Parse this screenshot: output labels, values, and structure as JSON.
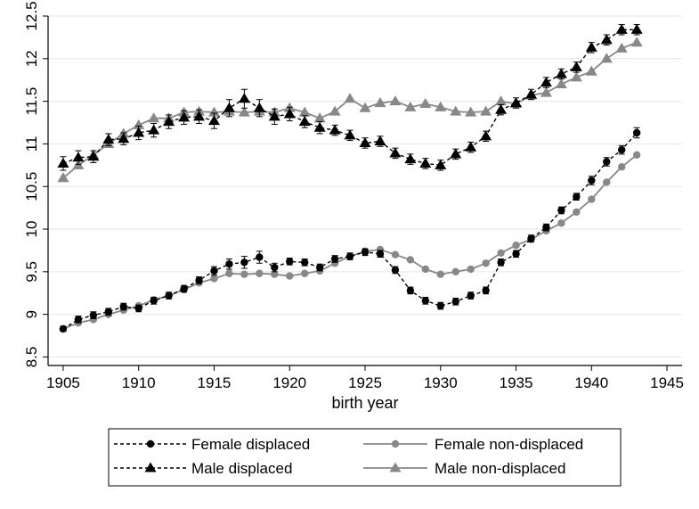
{
  "chart_data": {
    "type": "line",
    "title": "",
    "xlabel": "birth year",
    "ylabel": "",
    "xlim": [
      1904,
      1946
    ],
    "ylim": [
      8.4,
      12.5
    ],
    "xticks": [
      1905,
      1910,
      1915,
      1920,
      1925,
      1930,
      1935,
      1940,
      1945
    ],
    "xtick_labels": [
      "1905",
      "1910",
      "1915",
      "1920",
      "1925",
      "1930",
      "1935",
      "1940",
      "1945"
    ],
    "yticks": [
      8.5,
      9,
      9.5,
      10,
      10.5,
      11,
      11.5,
      12,
      12.5
    ],
    "ytick_labels": [
      "8.5",
      "9",
      "9.5",
      "10",
      "10.5",
      "11",
      "11.5",
      "12",
      "12.5"
    ],
    "grid": "horizontal",
    "legend_position": "bottom",
    "x": [
      1905,
      1906,
      1907,
      1908,
      1909,
      1910,
      1911,
      1912,
      1913,
      1914,
      1915,
      1916,
      1917,
      1918,
      1919,
      1920,
      1921,
      1922,
      1923,
      1924,
      1925,
      1926,
      1927,
      1928,
      1929,
      1930,
      1931,
      1932,
      1933,
      1934,
      1935,
      1936,
      1937,
      1938,
      1939,
      1940,
      1941,
      1942,
      1943
    ],
    "series": [
      {
        "name": "Female displaced",
        "color": "#000000",
        "line": "dashed",
        "marker": "circle",
        "values": [
          8.83,
          8.94,
          8.99,
          9.03,
          9.09,
          9.07,
          9.16,
          9.22,
          9.3,
          9.4,
          9.51,
          9.59,
          9.61,
          9.67,
          9.55,
          9.62,
          9.61,
          9.55,
          9.65,
          9.68,
          9.73,
          9.71,
          9.52,
          9.28,
          9.16,
          9.1,
          9.15,
          9.22,
          9.28,
          9.61,
          9.71,
          9.89,
          10.02,
          10.22,
          10.38,
          10.57,
          10.79,
          10.93,
          11.13
        ],
        "errors": [
          0.03,
          0.04,
          0.04,
          0.04,
          0.04,
          0.04,
          0.04,
          0.04,
          0.04,
          0.04,
          0.05,
          0.06,
          0.07,
          0.07,
          0.05,
          0.04,
          0.04,
          0.04,
          0.04,
          0.04,
          0.04,
          0.04,
          0.04,
          0.04,
          0.04,
          0.04,
          0.04,
          0.04,
          0.04,
          0.04,
          0.04,
          0.04,
          0.04,
          0.04,
          0.04,
          0.05,
          0.05,
          0.05,
          0.06
        ]
      },
      {
        "name": "Female non-displaced",
        "color": "#888888",
        "line": "solid",
        "marker": "circle",
        "values": [
          8.83,
          8.9,
          8.94,
          9.0,
          9.05,
          9.1,
          9.17,
          9.22,
          9.29,
          9.37,
          9.42,
          9.48,
          9.47,
          9.48,
          9.47,
          9.45,
          9.48,
          9.51,
          9.6,
          9.68,
          9.74,
          9.76,
          9.7,
          9.64,
          9.53,
          9.47,
          9.5,
          9.53,
          9.6,
          9.72,
          9.81,
          9.88,
          9.98,
          10.07,
          10.2,
          10.35,
          10.55,
          10.73,
          10.87
        ],
        "errors": []
      },
      {
        "name": "Male displaced",
        "color": "#000000",
        "line": "dashed",
        "marker": "triangle",
        "values": [
          10.77,
          10.84,
          10.85,
          11.05,
          11.06,
          11.13,
          11.16,
          11.26,
          11.31,
          11.32,
          11.27,
          11.42,
          11.53,
          11.42,
          11.32,
          11.35,
          11.26,
          11.19,
          11.16,
          11.1,
          11.01,
          11.03,
          10.89,
          10.82,
          10.77,
          10.75,
          10.88,
          10.96,
          11.09,
          11.4,
          11.48,
          11.58,
          11.72,
          11.82,
          11.9,
          12.13,
          12.22,
          12.34,
          12.34
        ]
      },
      {
        "name": "Male non-displaced",
        "color": "#888888",
        "line": "solid",
        "marker": "triangle",
        "values": [
          10.6,
          10.75,
          10.87,
          11.0,
          11.12,
          11.22,
          11.3,
          11.3,
          11.37,
          11.38,
          11.37,
          11.38,
          11.37,
          11.38,
          11.37,
          11.42,
          11.37,
          11.3,
          11.38,
          11.53,
          11.42,
          11.48,
          11.5,
          11.43,
          11.47,
          11.43,
          11.38,
          11.37,
          11.38,
          11.5,
          11.47,
          11.57,
          11.6,
          11.7,
          11.78,
          11.85,
          12.0,
          12.12,
          12.19
        ]
      }
    ],
    "male_displaced_errors": [
      0.08,
      0.08,
      0.07,
      0.07,
      0.07,
      0.08,
      0.08,
      0.08,
      0.08,
      0.08,
      0.09,
      0.1,
      0.11,
      0.1,
      0.09,
      0.08,
      0.07,
      0.07,
      0.06,
      0.06,
      0.06,
      0.06,
      0.06,
      0.06,
      0.06,
      0.06,
      0.06,
      0.06,
      0.06,
      0.06,
      0.06,
      0.06,
      0.06,
      0.06,
      0.06,
      0.06,
      0.06,
      0.06,
      0.06
    ]
  },
  "legend": {
    "items": [
      {
        "label": "Female displaced",
        "series": 0
      },
      {
        "label": "Female non-displaced",
        "series": 1
      },
      {
        "label": "Male displaced",
        "series": 2
      },
      {
        "label": "Male non-displaced",
        "series": 3
      }
    ]
  }
}
